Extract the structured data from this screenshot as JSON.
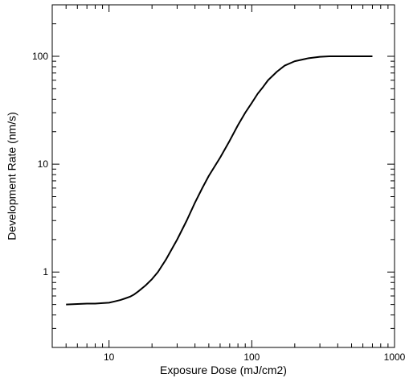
{
  "chart_data": {
    "type": "line",
    "title": "",
    "xlabel": "Exposure Dose (mJ/cm2)",
    "ylabel": "Development Rate (nm/s)",
    "xscale": "log",
    "yscale": "log",
    "xlim": [
      4,
      1000
    ],
    "ylim": [
      0.2,
      300
    ],
    "grid": false,
    "legend": "none",
    "x_ticks": [
      {
        "value": 10,
        "label": "10"
      },
      {
        "value": 100,
        "label": "100"
      },
      {
        "value": 1000,
        "label": "1000"
      }
    ],
    "y_ticks": [
      {
        "value": 1,
        "label": "1"
      },
      {
        "value": 10,
        "label": "10"
      },
      {
        "value": 100,
        "label": "100"
      }
    ],
    "series": [
      {
        "color": "#000000",
        "x": [
          5,
          6,
          7,
          8,
          9,
          10,
          11,
          12,
          13,
          14,
          15,
          16,
          18,
          20,
          22,
          25,
          28,
          30,
          35,
          40,
          45,
          50,
          60,
          70,
          80,
          90,
          100,
          110,
          120,
          130,
          150,
          170,
          200,
          250,
          300,
          350,
          400,
          500,
          600,
          700
        ],
        "y": [
          0.5,
          0.505,
          0.51,
          0.51,
          0.515,
          0.52,
          0.535,
          0.55,
          0.57,
          0.59,
          0.62,
          0.66,
          0.75,
          0.86,
          1.0,
          1.3,
          1.7,
          2.0,
          3.0,
          4.4,
          6.0,
          7.8,
          11.5,
          16.5,
          23,
          30,
          37,
          45,
          52,
          60,
          72,
          82,
          90,
          96,
          99,
          100,
          100,
          100,
          100,
          100
        ]
      }
    ]
  }
}
